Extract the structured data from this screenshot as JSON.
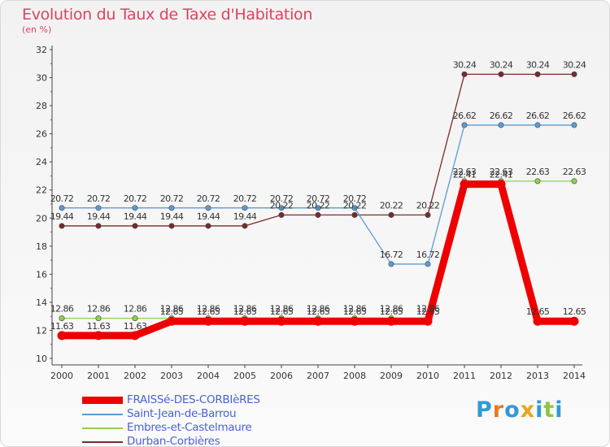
{
  "header": {
    "title": "Evolution du Taux de Taxe d'Habitation",
    "subtitle": "(en %)"
  },
  "logo": {
    "letters": [
      "P",
      "r",
      "o",
      "x",
      "i",
      "t",
      "i"
    ],
    "colors": [
      "#2f9ad6",
      "#e87a1e",
      "#2f9ad6",
      "#e8a51e",
      "#2f9ad6",
      "#8cc63f",
      "#2f9ad6"
    ]
  },
  "chart_data": {
    "type": "line",
    "x": [
      "2000",
      "2001",
      "2002",
      "2003",
      "2004",
      "2005",
      "2006",
      "2007",
      "2008",
      "2009",
      "2010",
      "2011",
      "2012",
      "2013",
      "2014"
    ],
    "ylim": [
      10,
      32
    ],
    "yticks": [
      "10",
      "12",
      "14",
      "16",
      "18",
      "20",
      "22",
      "24",
      "26",
      "28",
      "30",
      "32"
    ],
    "grid": false,
    "legend_position": "bottom-left",
    "series": [
      {
        "name": "Durban-Corbières",
        "color": "#7a2a2a",
        "values": [
          19.44,
          19.44,
          19.44,
          19.44,
          19.44,
          19.44,
          20.22,
          20.22,
          20.22,
          20.22,
          20.22,
          30.24,
          30.24,
          30.24,
          30.24
        ],
        "labels": [
          "19.44",
          "19.44",
          "19.44",
          "19.44",
          "19.44",
          "19.44",
          "20.22",
          "20.22",
          "20.22",
          "20.22",
          "20.22",
          "30.24",
          "30.24",
          "30.24",
          "30.24"
        ]
      },
      {
        "name": "Saint-Jean-de-Barrou",
        "color": "#5b9bd5",
        "values": [
          20.72,
          20.72,
          20.72,
          20.72,
          20.72,
          20.72,
          20.72,
          20.72,
          20.72,
          16.72,
          16.72,
          26.62,
          26.62,
          26.62,
          26.62
        ],
        "labels": [
          "20.72",
          "20.72",
          "20.72",
          "20.72",
          "20.72",
          "20.72",
          "20.72",
          "20.72",
          "20.72",
          "16.72",
          "16.72",
          "26.62",
          "26.62",
          "26.62",
          "26.62"
        ]
      },
      {
        "name": "Embres-et-Castelmaure",
        "color": "#8fd050",
        "values": [
          12.86,
          12.86,
          12.86,
          12.86,
          12.86,
          12.86,
          12.86,
          12.86,
          12.86,
          12.86,
          12.86,
          22.63,
          22.63,
          22.63,
          22.63
        ],
        "labels": [
          "12.86",
          "12.86",
          "12.86",
          "12.86",
          "12.86",
          "12.86",
          "12.86",
          "12.86",
          "12.86",
          "12.86",
          "12.86",
          "22.63",
          "22.63",
          "22.63",
          "22.63"
        ]
      },
      {
        "name": "FRAISSé-DES-CORBIèRES",
        "color": "#ee0000",
        "values": [
          11.63,
          11.63,
          11.63,
          12.65,
          12.65,
          12.65,
          12.65,
          12.65,
          12.65,
          12.65,
          12.65,
          22.41,
          22.41,
          12.65,
          12.65
        ],
        "labels": [
          "11.63",
          "11.63",
          "11.63",
          "12.65",
          "12.65",
          "12.65",
          "12.65",
          "12.65",
          "12.65",
          "12.65",
          "12.65",
          "22.41",
          "22.41",
          "12.65",
          "12.65"
        ]
      }
    ],
    "legend": [
      {
        "label": "FRAISSé-DES-CORBIèRES",
        "color": "#ee0000"
      },
      {
        "label": "Saint-Jean-de-Barrou",
        "color": "#5b9bd5"
      },
      {
        "label": "Embres-et-Castelmaure",
        "color": "#8fd050"
      },
      {
        "label": "Durban-Corbières",
        "color": "#7a2a2a"
      }
    ]
  }
}
